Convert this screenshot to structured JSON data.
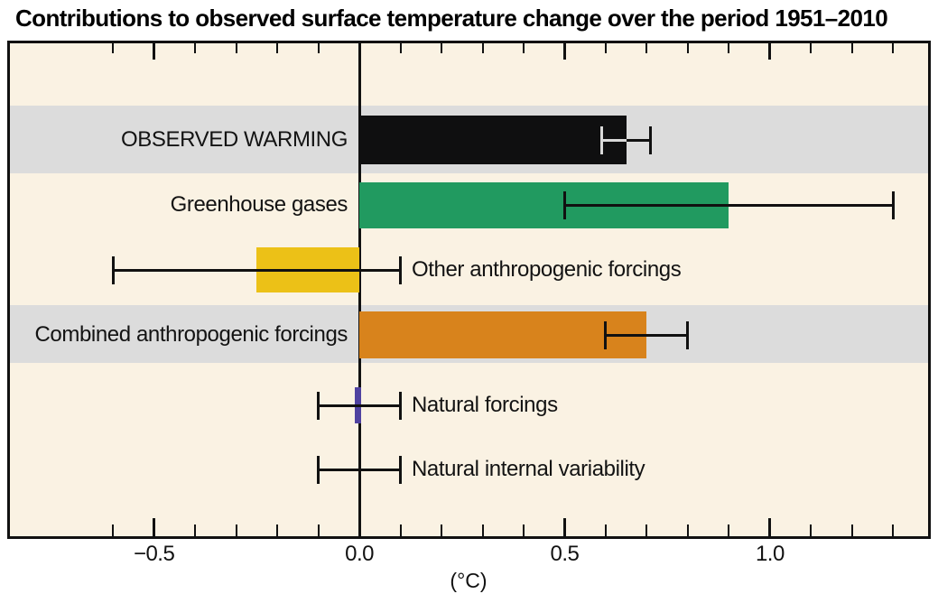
{
  "title": "Contributions to observed surface temperature change over the period 1951–2010",
  "chart_data": {
    "type": "bar",
    "orientation": "horizontal",
    "title": "Contributions to observed surface temperature change over the period 1951–2010",
    "xlabel": "(°C)",
    "xlim": [
      -0.851,
      1.385
    ],
    "grid": false,
    "zero_line": true,
    "x_major_ticks": [
      -0.5,
      0.5,
      1.0
    ],
    "x_tick_labels": [
      {
        "value": -0.5,
        "text": "−0.5"
      },
      {
        "value": 0.0,
        "text": "0.0"
      },
      {
        "value": 0.5,
        "text": "0.5"
      },
      {
        "value": 1.0,
        "text": "1.0"
      }
    ],
    "x_minor_tick_range": [
      -0.6,
      1.3
    ],
    "x_minor_tick_step": 0.1,
    "rows": [
      {
        "name": "observed-warming",
        "label": "OBSERVED WARMING",
        "label_side": "left",
        "value": 0.65,
        "err_low": 0.59,
        "err_high": 0.71,
        "bar_color": "#0f0f10",
        "band": true,
        "whisker_inner_color": "#d9d9d9"
      },
      {
        "name": "greenhouse-gases",
        "label": "Greenhouse gases",
        "label_side": "left",
        "value": 0.9,
        "err_low": 0.5,
        "err_high": 1.3,
        "bar_color": "#219a60",
        "band": false
      },
      {
        "name": "other-anthropogenic-forcings",
        "label": "Other anthropogenic forcings",
        "label_side": "right",
        "value": -0.25,
        "err_low": -0.6,
        "err_high": 0.1,
        "bar_color": "#ecc117",
        "band": false
      },
      {
        "name": "combined-anthropogenic-forcings",
        "label": "Combined anthropogenic forcings",
        "label_side": "left",
        "value": 0.7,
        "err_low": 0.6,
        "err_high": 0.8,
        "bar_color": "#d8831c",
        "band": true
      },
      {
        "name": "natural-forcings",
        "label": "Natural forcings",
        "label_side": "right",
        "value": 0.0,
        "err_low": -0.1,
        "err_high": 0.1,
        "bar_color": "#4f42a0",
        "band": false,
        "sliver": true
      },
      {
        "name": "natural-internal-variability",
        "label": "Natural internal variability",
        "label_side": "right",
        "value": null,
        "err_low": -0.1,
        "err_high": 0.1,
        "bar_color": null,
        "band": false
      }
    ],
    "colors": {
      "plot_background": "#faf2e3",
      "highlight_band": "#dcdcdc",
      "axis": "#111111",
      "observed_warming_bar": "#0f0f10",
      "greenhouse_gases_bar": "#219a60",
      "other_anthropogenic_bar": "#ecc117",
      "combined_anthropogenic_bar": "#d8831c",
      "natural_forcings_bar": "#4f42a0"
    }
  }
}
